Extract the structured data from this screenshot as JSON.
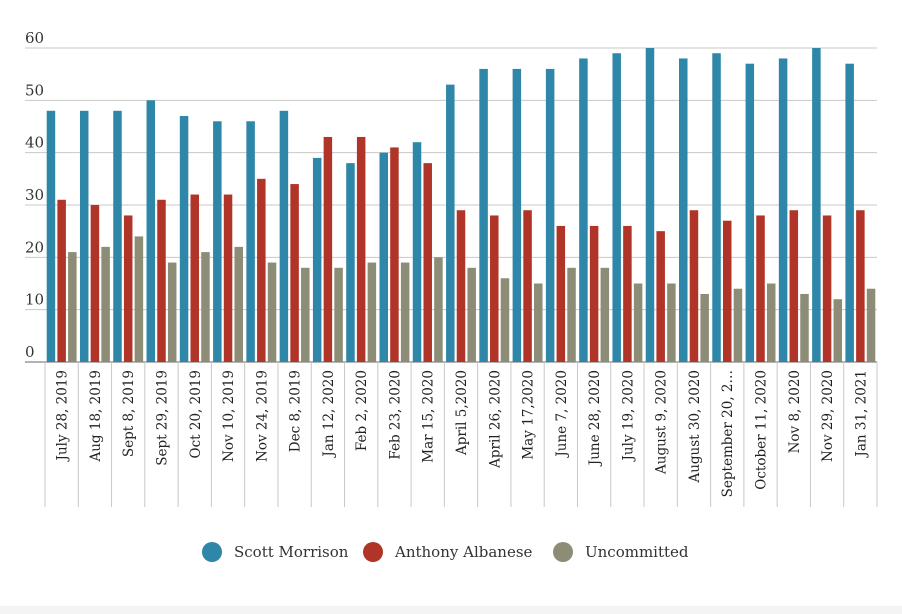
{
  "chart_data": {
    "type": "bar",
    "title": "",
    "xlabel": "",
    "ylabel": "",
    "ylim": [
      0,
      60
    ],
    "yticks": [
      0,
      10,
      20,
      30,
      40,
      50,
      60
    ],
    "grid": true,
    "legend_position": "bottom",
    "categories": [
      "July 28, 2019",
      "Aug 18, 2019",
      "Sept 8, 2019",
      "Sept 29, 2019",
      "Oct 20, 2019",
      "Nov 10, 2019",
      "Nov 24, 2019",
      "Dec 8, 2019",
      "Jan 12, 2020",
      "Feb 2, 2020",
      "Feb 23, 2020",
      "Mar 15, 2020",
      "April 5,2020",
      "April 26, 2020",
      "May 17,2020",
      "June 7, 2020",
      "June 28, 2020",
      "July 19, 2020",
      "August 9, 2020",
      "August 30, 2020",
      "September 20, 2…",
      "October 11, 2020",
      "Nov 8, 2020",
      "Nov 29, 2020",
      "Jan 31, 2021"
    ],
    "series": [
      {
        "name": "Scott Morrison",
        "color": "#2e86a8",
        "values": [
          48,
          48,
          48,
          50,
          47,
          46,
          46,
          48,
          39,
          38,
          40,
          42,
          53,
          56,
          56,
          56,
          58,
          59,
          60,
          58,
          59,
          57,
          58,
          60,
          57
        ]
      },
      {
        "name": "Anthony Albanese",
        "color": "#b03427",
        "values": [
          31,
          30,
          28,
          31,
          32,
          32,
          35,
          34,
          43,
          43,
          41,
          38,
          29,
          28,
          29,
          26,
          26,
          26,
          25,
          29,
          27,
          28,
          29,
          28,
          29
        ]
      },
      {
        "name": "Uncommitted",
        "color": "#8d8c77",
        "values": [
          21,
          22,
          24,
          19,
          21,
          22,
          19,
          18,
          18,
          19,
          19,
          20,
          18,
          16,
          15,
          18,
          18,
          15,
          15,
          13,
          14,
          15,
          13,
          12,
          14
        ]
      }
    ]
  }
}
